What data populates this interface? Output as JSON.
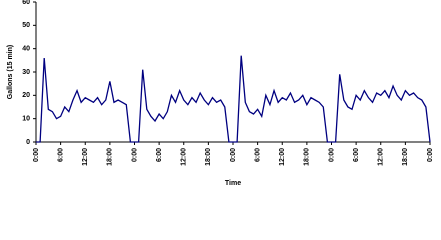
{
  "chart_data": {
    "type": "line",
    "y_label": "Gallons (15 min)",
    "x_label": "Time",
    "x": [
      0,
      1,
      2,
      3,
      4,
      5,
      6,
      7,
      8,
      9,
      10,
      11,
      12,
      13,
      14,
      15,
      16,
      17,
      18,
      19,
      20,
      21,
      22,
      23,
      24,
      25,
      26,
      27,
      28,
      29,
      30,
      31,
      32,
      33,
      34,
      35,
      36,
      37,
      38,
      39,
      40,
      41,
      42,
      43,
      44,
      45,
      46,
      47,
      48,
      49,
      50,
      51,
      52,
      53,
      54,
      55,
      56,
      57,
      58,
      59,
      60,
      61,
      62,
      63,
      64,
      65,
      66,
      67,
      68,
      69,
      70,
      71,
      72,
      73,
      74,
      75,
      76,
      77,
      78,
      79,
      80,
      81,
      82,
      83,
      84,
      85,
      86,
      87,
      88,
      89,
      90,
      91,
      92,
      93,
      94,
      95,
      96
    ],
    "series": [
      {
        "color": "#000080",
        "values": [
          0,
          0,
          36,
          14,
          13,
          10,
          11,
          15,
          13,
          18,
          22,
          17,
          19,
          18,
          17,
          19,
          16,
          18,
          26,
          17,
          18,
          17,
          16,
          0,
          0,
          0,
          31,
          14,
          11,
          9,
          12,
          10,
          13,
          20,
          17,
          22,
          18,
          16,
          19,
          17,
          21,
          18,
          16,
          19,
          17,
          18,
          15,
          0,
          0,
          0,
          37,
          17,
          13,
          12,
          14,
          11,
          20,
          16,
          22,
          17,
          19,
          18,
          21,
          17,
          18,
          20,
          16,
          19,
          18,
          17,
          15,
          0,
          0,
          0,
          29,
          18,
          15,
          14,
          20,
          18,
          22,
          19,
          17,
          21,
          20,
          22,
          19,
          24,
          20,
          18,
          22,
          20,
          21,
          19,
          18,
          15,
          0
        ]
      }
    ],
    "xlim": [
      0,
      96
    ],
    "xticks": [
      {
        "value": 0,
        "label": "0:00"
      },
      {
        "value": 6,
        "label": "6:00"
      },
      {
        "value": 12,
        "label": "12:00"
      },
      {
        "value": 18,
        "label": "18:00"
      },
      {
        "value": 24,
        "label": "0:00"
      },
      {
        "value": 30,
        "label": "6:00"
      },
      {
        "value": 36,
        "label": "12:00"
      },
      {
        "value": 42,
        "label": "18:00"
      },
      {
        "value": 48,
        "label": "0:00"
      },
      {
        "value": 54,
        "label": "6:00"
      },
      {
        "value": 60,
        "label": "12:00"
      },
      {
        "value": 66,
        "label": "18:00"
      },
      {
        "value": 72,
        "label": "0:00"
      },
      {
        "value": 78,
        "label": "6:00"
      },
      {
        "value": 84,
        "label": "12:00"
      },
      {
        "value": 90,
        "label": "18:00"
      },
      {
        "value": 96,
        "label": "0:00"
      }
    ],
    "ylim": [
      0,
      60
    ],
    "yticks": [
      0,
      10,
      20,
      30,
      40,
      50,
      60
    ]
  }
}
